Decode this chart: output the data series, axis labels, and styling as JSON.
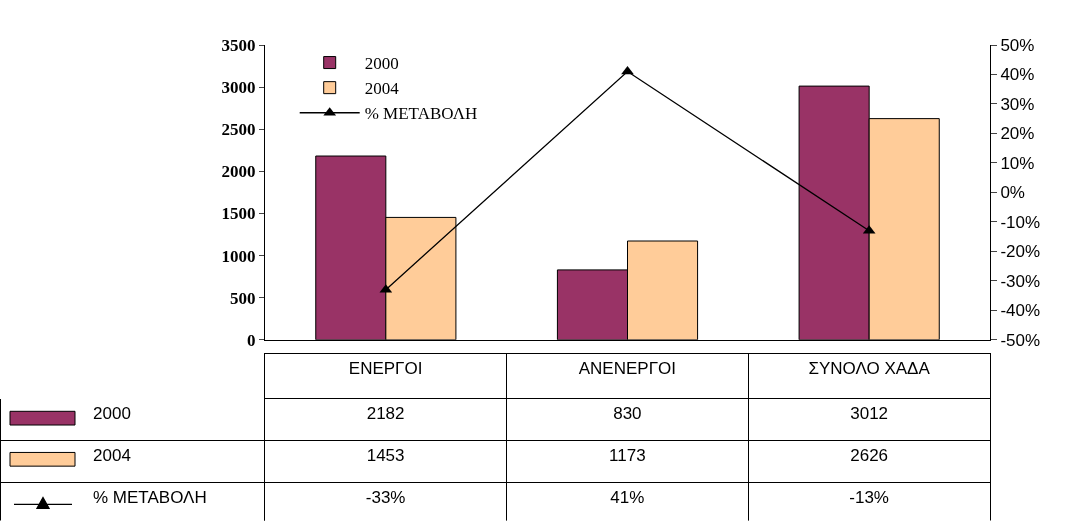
{
  "chart_data": {
    "type": "bar",
    "categories": [
      "ΕΝΕΡΓΟΙ",
      "ΑΝΕΝΕΡΓΟΙ",
      "ΣΥΝΟΛΟ ΧΑΔΑ"
    ],
    "series": [
      {
        "name": "2000",
        "color": "#993366",
        "values": [
          2182,
          830,
          3012
        ],
        "value_labels": [
          "2182",
          "830",
          "3012"
        ]
      },
      {
        "name": "2004",
        "color": "#ffcc99",
        "values": [
          1453,
          1173,
          2626
        ],
        "value_labels": [
          "1453",
          "1173",
          "2626"
        ]
      },
      {
        "name": "% ΜΕΤΑΒΟΛΗ",
        "type": "line",
        "axis": "y2",
        "color": "#000000",
        "marker": "triangle",
        "line_style": "solid",
        "values": [
          -33,
          41,
          -13
        ],
        "value_labels": [
          "-33%",
          "41%",
          "-13%"
        ]
      }
    ],
    "ylim": [
      0,
      3500
    ],
    "yticks": [
      0,
      500,
      1000,
      1500,
      2000,
      2500,
      3000,
      3500
    ],
    "y2lim": [
      -50,
      50
    ],
    "y2ticks": [
      {
        "value": -50,
        "label": "-50%"
      },
      {
        "value": -40,
        "label": "-40%"
      },
      {
        "value": -30,
        "label": "-30%"
      },
      {
        "value": -20,
        "label": "-20%"
      },
      {
        "value": -10,
        "label": "-10%"
      },
      {
        "value": 0,
        "label": "0%"
      },
      {
        "value": 10,
        "label": "10%"
      },
      {
        "value": 20,
        "label": "20%"
      },
      {
        "value": 30,
        "label": "30%"
      },
      {
        "value": 40,
        "label": "40%"
      },
      {
        "value": 50,
        "label": "50%"
      }
    ],
    "legend": "top left"
  }
}
